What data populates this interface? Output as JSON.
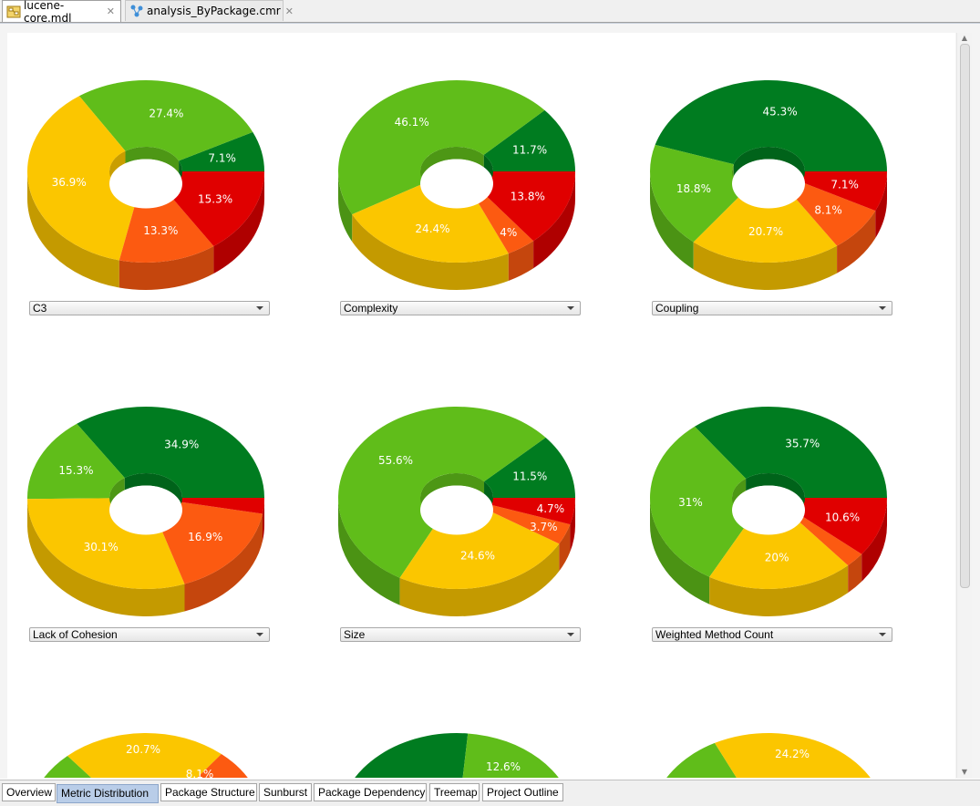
{
  "editor_tabs": [
    {
      "label": "lucene-core.mdl",
      "active": true,
      "icon": "model-file-icon"
    },
    {
      "label": "analysis_ByPackage.cmr",
      "active": false,
      "icon": "analysis-file-icon"
    }
  ],
  "colors": {
    "dark_green": "#007c20",
    "light_green": "#60bd1a",
    "yellow": "#fbc600",
    "orange": "#fc5a11",
    "red": "#e00000"
  },
  "chart_data": [
    {
      "type": "pie",
      "title": "C3",
      "slices": [
        {
          "color": "dark_green",
          "value": 7.1,
          "label": "7.1%"
        },
        {
          "color": "light_green",
          "value": 27.4,
          "label": "27.4%"
        },
        {
          "color": "yellow",
          "value": 36.9,
          "label": "36.9%"
        },
        {
          "color": "orange",
          "value": 13.3,
          "label": "13.3%"
        },
        {
          "color": "red",
          "value": 15.3,
          "label": "15.3%"
        }
      ]
    },
    {
      "type": "pie",
      "title": "Complexity",
      "slices": [
        {
          "color": "dark_green",
          "value": 11.7,
          "label": "11.7%"
        },
        {
          "color": "light_green",
          "value": 46.1,
          "label": "46.1%"
        },
        {
          "color": "yellow",
          "value": 24.4,
          "label": "24.4%"
        },
        {
          "color": "orange",
          "value": 4,
          "label": "4%"
        },
        {
          "color": "red",
          "value": 13.8,
          "label": "13.8%"
        }
      ]
    },
    {
      "type": "pie",
      "title": "Coupling",
      "slices": [
        {
          "color": "dark_green",
          "value": 45.3,
          "label": "45.3%"
        },
        {
          "color": "light_green",
          "value": 18.8,
          "label": "18.8%"
        },
        {
          "color": "yellow",
          "value": 20.7,
          "label": "20.7%"
        },
        {
          "color": "orange",
          "value": 8.1,
          "label": "8.1%"
        },
        {
          "color": "red",
          "value": 7.1,
          "label": "7.1%"
        }
      ]
    },
    {
      "type": "pie",
      "title": "Lack of Cohesion",
      "slices": [
        {
          "color": "dark_green",
          "value": 34.9,
          "label": "34.9%"
        },
        {
          "color": "light_green",
          "value": 15.3,
          "label": "15.3%"
        },
        {
          "color": "yellow",
          "value": 30.1,
          "label": "30.1%"
        },
        {
          "color": "orange",
          "value": 16.9,
          "label": "16.9%"
        },
        {
          "color": "red",
          "value": 2.8,
          "label": ""
        }
      ]
    },
    {
      "type": "pie",
      "title": "Size",
      "slices": [
        {
          "color": "dark_green",
          "value": 11.5,
          "label": "11.5%"
        },
        {
          "color": "light_green",
          "value": 55.6,
          "label": "55.6%"
        },
        {
          "color": "yellow",
          "value": 24.6,
          "label": "24.6%"
        },
        {
          "color": "orange",
          "value": 3.7,
          "label": "3.7%"
        },
        {
          "color": "red",
          "value": 4.7,
          "label": "4.7%"
        }
      ]
    },
    {
      "type": "pie",
      "title": "Weighted Method Count",
      "slices": [
        {
          "color": "dark_green",
          "value": 35.7,
          "label": "35.7%"
        },
        {
          "color": "light_green",
          "value": 31,
          "label": "31%"
        },
        {
          "color": "yellow",
          "value": 20,
          "label": "20%"
        },
        {
          "color": "orange",
          "value": 2.7,
          "label": ""
        },
        {
          "color": "red",
          "value": 10.6,
          "label": "10.6%"
        }
      ]
    },
    {
      "type": "pie",
      "title": "",
      "partial": true,
      "slices": [
        {
          "color": "light_green",
          "value": 0,
          "label": ""
        },
        {
          "color": "yellow",
          "value": 20.7,
          "label": "20.7%"
        },
        {
          "color": "orange",
          "value": 8.1,
          "label": "8.1%"
        }
      ]
    },
    {
      "type": "pie",
      "title": "",
      "partial": true,
      "slices": [
        {
          "color": "dark_green",
          "value": 0,
          "label": ""
        },
        {
          "color": "light_green",
          "value": 12.6,
          "label": "12.6%"
        }
      ]
    },
    {
      "type": "pie",
      "title": "",
      "partial": true,
      "slices": [
        {
          "color": "light_green",
          "value": 0,
          "label": ""
        },
        {
          "color": "yellow",
          "value": 24.2,
          "label": "24.2%"
        }
      ]
    }
  ],
  "view_tabs": [
    {
      "label": "Overview",
      "active": false
    },
    {
      "label": "Metric Distribution",
      "active": true
    },
    {
      "label": "Package Structure",
      "active": false
    },
    {
      "label": "Sunburst",
      "active": false
    },
    {
      "label": "Package Dependency",
      "active": false
    },
    {
      "label": "Treemap",
      "active": false
    },
    {
      "label": "Project Outline",
      "active": false
    }
  ]
}
